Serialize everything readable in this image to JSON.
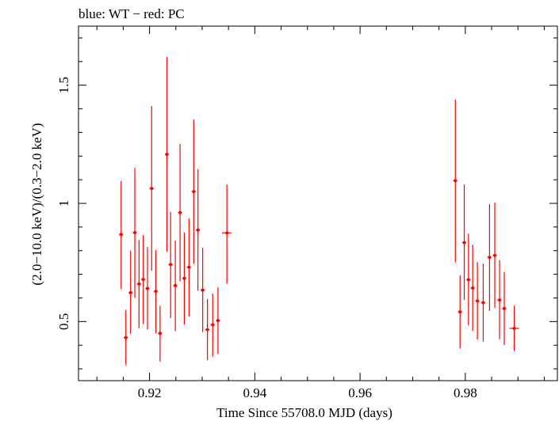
{
  "chart_data": {
    "type": "scatter",
    "title": "blue: WT − red: PC",
    "xlabel": "Time Since 55708.0 MJD (days)",
    "ylabel": "(2.0−10.0 keV)/(0.3−2.0 keV)",
    "xlim": [
      0.9065,
      0.9975
    ],
    "ylim": [
      0.25,
      1.75
    ],
    "x_ticks": [
      {
        "value": 0.92,
        "label": "0.92"
      },
      {
        "value": 0.94,
        "label": "0.94"
      },
      {
        "value": 0.96,
        "label": "0.96"
      },
      {
        "value": 0.98,
        "label": "0.98"
      }
    ],
    "y_ticks": [
      {
        "value": 0.5,
        "label": "0.5"
      },
      {
        "value": 1.0,
        "label": "1"
      },
      {
        "value": 1.5,
        "label": "1.5"
      }
    ],
    "grid": false,
    "series": [
      {
        "color": "#ff0000",
        "marker": "cross-errorbar",
        "points": [
          {
            "x": 0.9146,
            "y": 0.868,
            "ylo": 0.637,
            "yhi": 1.095,
            "xerr": 0.0004
          },
          {
            "x": 0.9155,
            "y": 0.432,
            "ylo": 0.315,
            "yhi": 0.55,
            "xerr": 0.0004
          },
          {
            "x": 0.9164,
            "y": 0.622,
            "ylo": 0.448,
            "yhi": 0.8,
            "xerr": 0.0004
          },
          {
            "x": 0.9172,
            "y": 0.876,
            "ylo": 0.6,
            "yhi": 1.15,
            "xerr": 0.0004
          },
          {
            "x": 0.918,
            "y": 0.659,
            "ylo": 0.472,
            "yhi": 0.845,
            "xerr": 0.0004
          },
          {
            "x": 0.9188,
            "y": 0.678,
            "ylo": 0.49,
            "yhi": 0.866,
            "xerr": 0.0004
          },
          {
            "x": 0.9196,
            "y": 0.64,
            "ylo": 0.466,
            "yhi": 0.815,
            "xerr": 0.0004
          },
          {
            "x": 0.9204,
            "y": 1.063,
            "ylo": 0.715,
            "yhi": 1.412,
            "xerr": 0.0004
          },
          {
            "x": 0.9212,
            "y": 0.628,
            "ylo": 0.451,
            "yhi": 0.803,
            "xerr": 0.0004
          },
          {
            "x": 0.922,
            "y": 0.45,
            "ylo": 0.331,
            "yhi": 0.567,
            "xerr": 0.0004
          },
          {
            "x": 0.9233,
            "y": 1.207,
            "ylo": 0.796,
            "yhi": 1.62,
            "xerr": 0.0004
          },
          {
            "x": 0.924,
            "y": 0.741,
            "ylo": 0.515,
            "yhi": 0.964,
            "xerr": 0.0004
          },
          {
            "x": 0.9249,
            "y": 0.652,
            "ylo": 0.46,
            "yhi": 0.842,
            "xerr": 0.0004
          },
          {
            "x": 0.9258,
            "y": 0.961,
            "ylo": 0.67,
            "yhi": 1.252,
            "xerr": 0.0004
          },
          {
            "x": 0.9266,
            "y": 0.683,
            "ylo": 0.487,
            "yhi": 0.877,
            "xerr": 0.0004
          },
          {
            "x": 0.9275,
            "y": 0.73,
            "ylo": 0.521,
            "yhi": 0.937,
            "xerr": 0.0004
          },
          {
            "x": 0.9284,
            "y": 1.05,
            "ylo": 0.745,
            "yhi": 1.355,
            "xerr": 0.0004
          },
          {
            "x": 0.9292,
            "y": 0.887,
            "ylo": 0.63,
            "yhi": 1.145,
            "xerr": 0.0004
          },
          {
            "x": 0.9301,
            "y": 0.633,
            "ylo": 0.455,
            "yhi": 0.812,
            "xerr": 0.0004
          },
          {
            "x": 0.931,
            "y": 0.466,
            "ylo": 0.337,
            "yhi": 0.596,
            "xerr": 0.0004
          },
          {
            "x": 0.932,
            "y": 0.486,
            "ylo": 0.352,
            "yhi": 0.618,
            "xerr": 0.0004
          },
          {
            "x": 0.933,
            "y": 0.504,
            "ylo": 0.363,
            "yhi": 0.645,
            "xerr": 0.0004
          },
          {
            "x": 0.9347,
            "y": 0.875,
            "ylo": 0.66,
            "yhi": 1.08,
            "xerr": 0.0009
          },
          {
            "x": 0.9781,
            "y": 1.096,
            "ylo": 0.75,
            "yhi": 1.44,
            "xerr": 0.0004
          },
          {
            "x": 0.979,
            "y": 0.541,
            "ylo": 0.386,
            "yhi": 0.696,
            "xerr": 0.0004
          },
          {
            "x": 0.9798,
            "y": 0.834,
            "ylo": 0.591,
            "yhi": 1.08,
            "xerr": 0.0004
          },
          {
            "x": 0.9806,
            "y": 0.677,
            "ylo": 0.484,
            "yhi": 0.872,
            "xerr": 0.0004
          },
          {
            "x": 0.9814,
            "y": 0.642,
            "ylo": 0.46,
            "yhi": 0.825,
            "xerr": 0.0004
          },
          {
            "x": 0.9823,
            "y": 0.587,
            "ylo": 0.424,
            "yhi": 0.752,
            "xerr": 0.0004
          },
          {
            "x": 0.9834,
            "y": 0.58,
            "ylo": 0.415,
            "yhi": 0.745,
            "xerr": 0.0004
          },
          {
            "x": 0.9846,
            "y": 0.772,
            "ylo": 0.545,
            "yhi": 0.997,
            "xerr": 0.0004
          },
          {
            "x": 0.9856,
            "y": 0.78,
            "ylo": 0.557,
            "yhi": 1.003,
            "xerr": 0.0004
          },
          {
            "x": 0.9865,
            "y": 0.591,
            "ylo": 0.425,
            "yhi": 0.76,
            "xerr": 0.0004
          },
          {
            "x": 0.9874,
            "y": 0.555,
            "ylo": 0.4,
            "yhi": 0.71,
            "xerr": 0.0004
          },
          {
            "x": 0.9893,
            "y": 0.471,
            "ylo": 0.375,
            "yhi": 0.567,
            "xerr": 0.0009
          }
        ]
      }
    ]
  }
}
